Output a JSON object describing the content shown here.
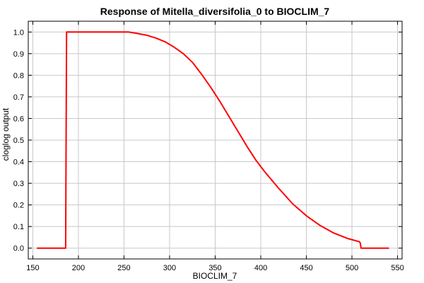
{
  "chart_data": {
    "type": "line",
    "title": "Response of Mitella_diversifolia_0 to BIOCLIM_7",
    "xlabel": "BIOCLIM_7",
    "ylabel": "cloglog output",
    "xlim": [
      145,
      555
    ],
    "ylim": [
      -0.05,
      1.05
    ],
    "grid": true,
    "line_color": "#ff0000",
    "x_ticks": [
      {
        "value": 150,
        "label": "150"
      },
      {
        "value": 200,
        "label": "200"
      },
      {
        "value": 250,
        "label": "250"
      },
      {
        "value": 300,
        "label": "300"
      },
      {
        "value": 350,
        "label": "350"
      },
      {
        "value": 400,
        "label": "400"
      },
      {
        "value": 450,
        "label": "450"
      },
      {
        "value": 500,
        "label": "500"
      },
      {
        "value": 550,
        "label": "550"
      }
    ],
    "y_ticks": [
      {
        "value": 0.0,
        "label": "0.0"
      },
      {
        "value": 0.1,
        "label": "0.1"
      },
      {
        "value": 0.2,
        "label": "0.2"
      },
      {
        "value": 0.3,
        "label": "0.3"
      },
      {
        "value": 0.4,
        "label": "0.4"
      },
      {
        "value": 0.5,
        "label": "0.5"
      },
      {
        "value": 0.6,
        "label": "0.6"
      },
      {
        "value": 0.7,
        "label": "0.7"
      },
      {
        "value": 0.8,
        "label": "0.8"
      },
      {
        "value": 0.9,
        "label": "0.9"
      },
      {
        "value": 1.0,
        "label": "1.0"
      }
    ],
    "series": [
      {
        "x": [
          155,
          186,
          187,
          200,
          220,
          240,
          255,
          265,
          275,
          285,
          295,
          305,
          315,
          325,
          335,
          345,
          355,
          365,
          375,
          385,
          395,
          405,
          420,
          435,
          450,
          465,
          480,
          495,
          508,
          509,
          510,
          540
        ],
        "y": [
          0.0,
          0.0,
          1.0,
          1.0,
          1.0,
          1.0,
          1.0,
          0.993,
          0.985,
          0.972,
          0.955,
          0.93,
          0.9,
          0.86,
          0.805,
          0.745,
          0.68,
          0.61,
          0.54,
          0.47,
          0.405,
          0.35,
          0.275,
          0.205,
          0.15,
          0.105,
          0.07,
          0.045,
          0.03,
          0.025,
          0.0,
          0.0
        ]
      }
    ]
  }
}
